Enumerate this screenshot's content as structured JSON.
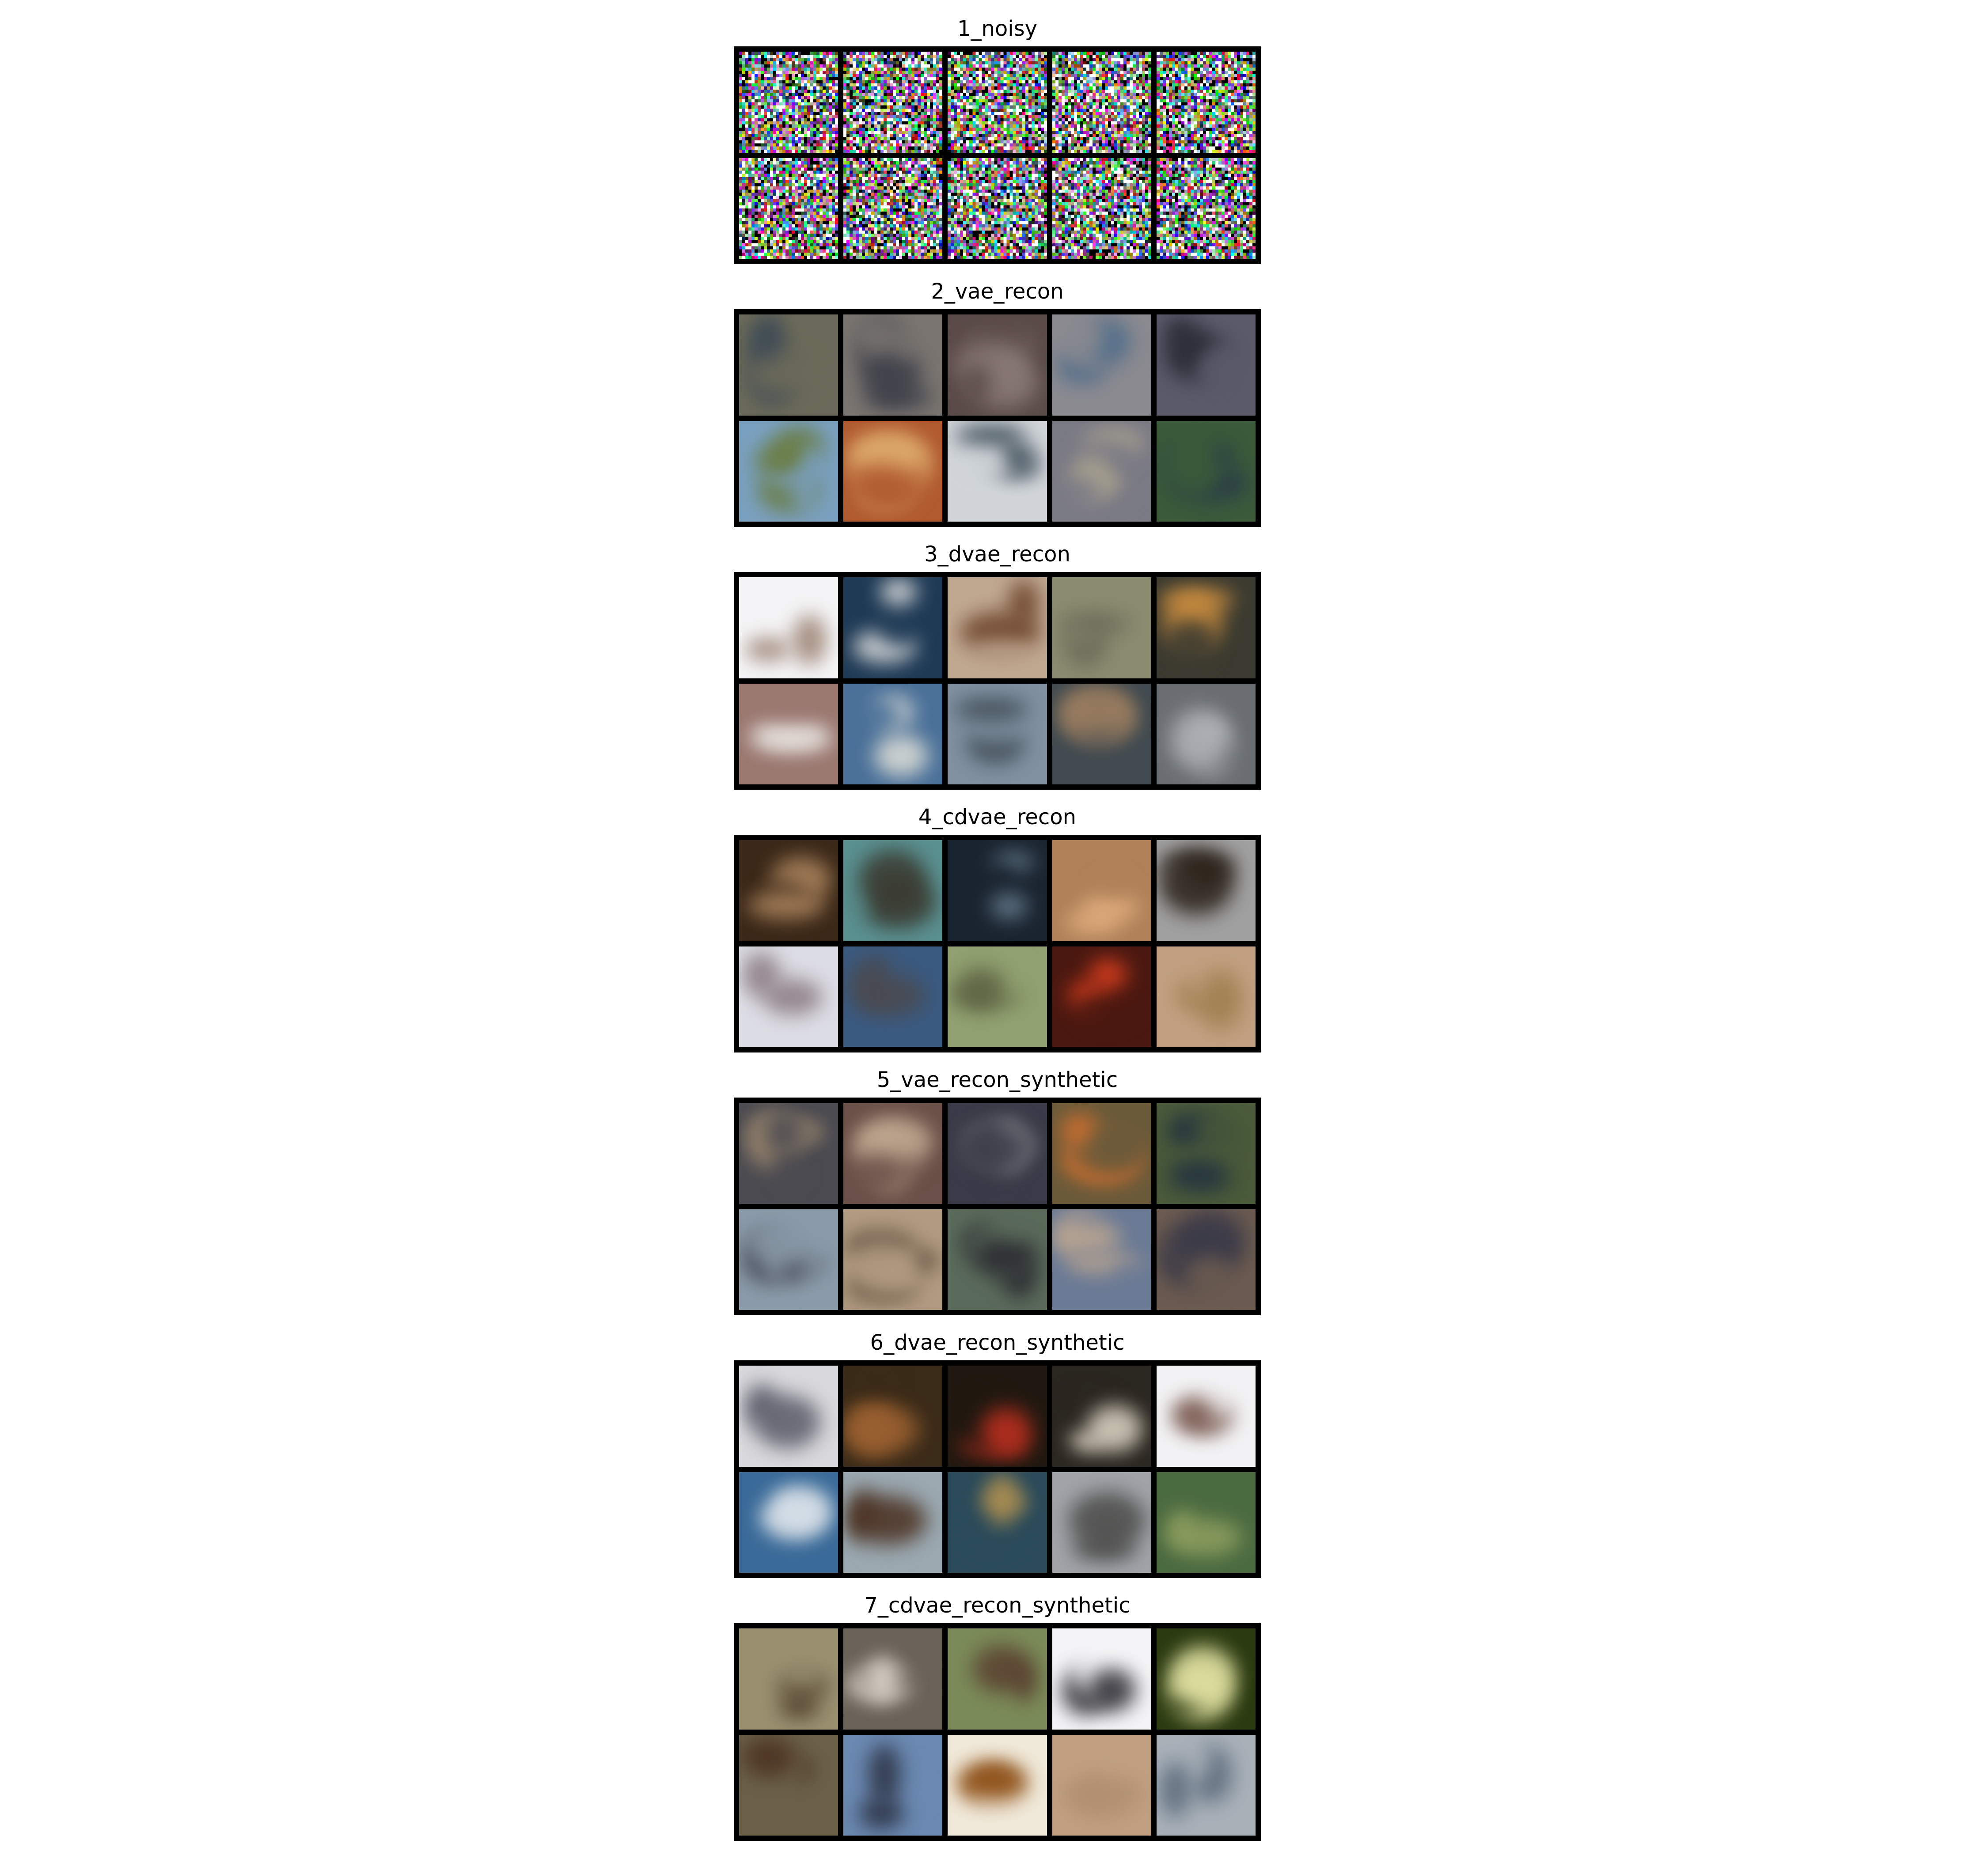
{
  "panels": [
    {
      "title": "1_noisy",
      "kind": "noise",
      "tiles": [
        {
          "bg": "#7a6f7a",
          "fg": "#4c7a5c"
        },
        {
          "bg": "#6b7a5e",
          "fg": "#3e5a7a"
        },
        {
          "bg": "#707070",
          "fg": "#6a4a6a"
        },
        {
          "bg": "#6d6a5a",
          "fg": "#4a6a7a"
        },
        {
          "bg": "#747a80",
          "fg": "#6a4a4a"
        },
        {
          "bg": "#7a7a6a",
          "fg": "#4a5a7a"
        },
        {
          "bg": "#6e6a6e",
          "fg": "#5a7a5a"
        },
        {
          "bg": "#707478",
          "fg": "#7a4a5a"
        },
        {
          "bg": "#6a6e5c",
          "fg": "#4a6a6a"
        },
        {
          "bg": "#786a70",
          "fg": "#5a4a7a"
        }
      ]
    },
    {
      "title": "2_vae_recon",
      "kind": "blurry",
      "tiles": [
        {
          "bg": "#6b6a5a",
          "fg": "#3d4a55"
        },
        {
          "bg": "#7a7570",
          "fg": "#3b3d48"
        },
        {
          "bg": "#5a4a48",
          "fg": "#8a7a75"
        },
        {
          "bg": "#8a8a90",
          "fg": "#4a6a8a"
        },
        {
          "bg": "#5a5a6a",
          "fg": "#2a2a35"
        },
        {
          "bg": "#7aa0c0",
          "fg": "#6a7a3a"
        },
        {
          "bg": "#b05a30",
          "fg": "#e0b070"
        },
        {
          "bg": "#d0d4d8",
          "fg": "#3a4a55"
        },
        {
          "bg": "#7a7a85",
          "fg": "#b0a890"
        },
        {
          "bg": "#3a5a3a",
          "fg": "#2a3a4a"
        }
      ]
    },
    {
      "title": "3_dvae_recon",
      "kind": "blurry",
      "tiles": [
        {
          "bg": "#f4f4f6",
          "fg": "#9a8070"
        },
        {
          "bg": "#1e3a55",
          "fg": "#e0e0e0"
        },
        {
          "bg": "#c0a890",
          "fg": "#6a4028"
        },
        {
          "bg": "#8a8c70",
          "fg": "#6a6a58"
        },
        {
          "bg": "#3a3a30",
          "fg": "#d09040"
        },
        {
          "bg": "#9a7870",
          "fg": "#e8e4e0"
        },
        {
          "bg": "#4a7098",
          "fg": "#e0e0d8"
        },
        {
          "bg": "#8090a0",
          "fg": "#3a4850"
        },
        {
          "bg": "#404a50",
          "fg": "#a08060"
        },
        {
          "bg": "#6a6e72",
          "fg": "#b0b4b8"
        }
      ]
    },
    {
      "title": "4_cdvae_recon",
      "kind": "blurry",
      "tiles": [
        {
          "bg": "#3a2818",
          "fg": "#b08860"
        },
        {
          "bg": "#5a9090",
          "fg": "#3a3a30"
        },
        {
          "bg": "#1a2430",
          "fg": "#6a8090"
        },
        {
          "bg": "#b08058",
          "fg": "#e0b080"
        },
        {
          "bg": "#a0a0a0",
          "fg": "#2a2018"
        },
        {
          "bg": "#dcdce4",
          "fg": "#8a7a80"
        },
        {
          "bg": "#3a5a80",
          "fg": "#4a4a50"
        },
        {
          "bg": "#90a070",
          "fg": "#5a6040"
        },
        {
          "bg": "#4a1810",
          "fg": "#e04020"
        },
        {
          "bg": "#c0a080",
          "fg": "#a08050"
        }
      ]
    },
    {
      "title": "5_vae_recon_synthetic",
      "kind": "blurry",
      "tiles": [
        {
          "bg": "#4a4a50",
          "fg": "#a08a70"
        },
        {
          "bg": "#6a5048",
          "fg": "#c0a890"
        },
        {
          "bg": "#3a3a48",
          "fg": "#8a8a90"
        },
        {
          "bg": "#6a5a3a",
          "fg": "#d07030"
        },
        {
          "bg": "#4a5a3a",
          "fg": "#203040"
        },
        {
          "bg": "#8a9aa8",
          "fg": "#3a3a48"
        },
        {
          "bg": "#b09a80",
          "fg": "#5a4a3a"
        },
        {
          "bg": "#5a6a5a",
          "fg": "#2a2a30"
        },
        {
          "bg": "#6a7a95",
          "fg": "#c0a890"
        },
        {
          "bg": "#6a5a50",
          "fg": "#3a3a48"
        }
      ]
    },
    {
      "title": "6_dvae_recon_synthetic",
      "kind": "blurry",
      "tiles": [
        {
          "bg": "#d8d8dc",
          "fg": "#5a5a68"
        },
        {
          "bg": "#3a2a18",
          "fg": "#9a6030"
        },
        {
          "bg": "#201810",
          "fg": "#c03020"
        },
        {
          "bg": "#2a2620",
          "fg": "#e0d8c8"
        },
        {
          "bg": "#f2f2f4",
          "fg": "#7a5a50"
        },
        {
          "bg": "#3a6a98",
          "fg": "#d8e0e8"
        },
        {
          "bg": "#9aa8b0",
          "fg": "#4a3020"
        },
        {
          "bg": "#2a4a5a",
          "fg": "#b09050"
        },
        {
          "bg": "#a0a4a8",
          "fg": "#4a4a48"
        },
        {
          "bg": "#4a6a40",
          "fg": "#90a060"
        }
      ]
    },
    {
      "title": "7_cdvae_recon_synthetic",
      "kind": "blurry",
      "tiles": [
        {
          "bg": "#9a9070",
          "fg": "#4a3a28"
        },
        {
          "bg": "#6a6258",
          "fg": "#e0d8d0"
        },
        {
          "bg": "#7a8a58",
          "fg": "#5a4030"
        },
        {
          "bg": "#f4f4f6",
          "fg": "#2a2a30"
        },
        {
          "bg": "#2a3a10",
          "fg": "#e0e0a0"
        },
        {
          "bg": "#6a6048",
          "fg": "#4a3020"
        },
        {
          "bg": "#6a88b0",
          "fg": "#2a3040"
        },
        {
          "bg": "#f0e8d8",
          "fg": "#8a4a10"
        },
        {
          "bg": "#c0a080",
          "fg": "#b09070"
        },
        {
          "bg": "#a8b0b8",
          "fg": "#5a6a7a"
        }
      ]
    }
  ]
}
